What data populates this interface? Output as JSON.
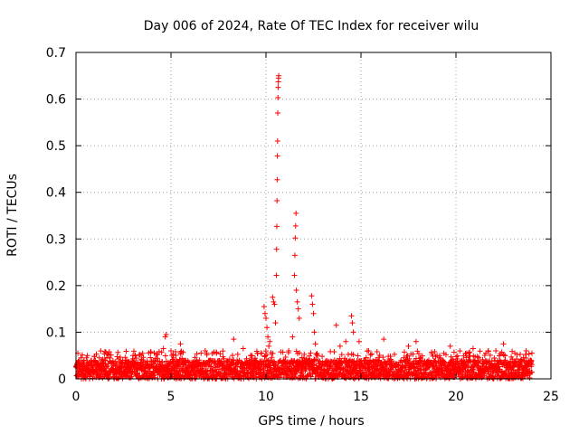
{
  "chart_data": {
    "type": "scatter",
    "title": "Day 006 of 2024, Rate Of TEC Index for receiver wilu",
    "xlabel": "GPS time / hours",
    "ylabel": "ROTI / TECUs",
    "xlim": [
      0,
      25
    ],
    "ylim": [
      0,
      0.7
    ],
    "xticks": [
      0,
      5,
      10,
      15,
      20,
      25
    ],
    "yticks": [
      0,
      0.1,
      0.2,
      0.3,
      0.4,
      0.5,
      0.6,
      0.7
    ],
    "xtick_labels": [
      "0",
      "5",
      "10",
      "15",
      "20",
      "25"
    ],
    "ytick_labels": [
      "0",
      "0.1",
      "0.2",
      "0.3",
      "0.4",
      "0.5",
      "0.6",
      "0.7"
    ],
    "grid": true,
    "marker": "+",
    "marker_color": "#ff0000",
    "x_data_range": [
      0,
      24
    ],
    "baseline": {
      "typical_max": 0.04,
      "occasional_max": 0.06
    },
    "points": [
      [
        0.1,
        0.055
      ],
      [
        0.6,
        0.05
      ],
      [
        1.7,
        0.052
      ],
      [
        3.0,
        0.05
      ],
      [
        4.6,
        0.065
      ],
      [
        4.7,
        0.09
      ],
      [
        4.75,
        0.095
      ],
      [
        5.0,
        0.06
      ],
      [
        5.5,
        0.075
      ],
      [
        6.8,
        0.06
      ],
      [
        7.4,
        0.055
      ],
      [
        8.3,
        0.085
      ],
      [
        8.8,
        0.065
      ],
      [
        9.2,
        0.05
      ],
      [
        9.9,
        0.155
      ],
      [
        9.95,
        0.14
      ],
      [
        10.0,
        0.13
      ],
      [
        10.05,
        0.11
      ],
      [
        10.1,
        0.09
      ],
      [
        10.15,
        0.07
      ],
      [
        10.2,
        0.08
      ],
      [
        10.35,
        0.175
      ],
      [
        10.4,
        0.165
      ],
      [
        10.45,
        0.16
      ],
      [
        10.5,
        0.12
      ],
      [
        10.55,
        0.222
      ],
      [
        10.56,
        0.278
      ],
      [
        10.57,
        0.327
      ],
      [
        10.58,
        0.382
      ],
      [
        10.59,
        0.427
      ],
      [
        10.6,
        0.478
      ],
      [
        10.61,
        0.51
      ],
      [
        10.62,
        0.57
      ],
      [
        10.63,
        0.603
      ],
      [
        10.64,
        0.625
      ],
      [
        10.65,
        0.637
      ],
      [
        10.66,
        0.645
      ],
      [
        10.67,
        0.65
      ],
      [
        11.2,
        0.06
      ],
      [
        11.4,
        0.09
      ],
      [
        11.5,
        0.222
      ],
      [
        11.52,
        0.265
      ],
      [
        11.54,
        0.302
      ],
      [
        11.56,
        0.328
      ],
      [
        11.58,
        0.355
      ],
      [
        11.6,
        0.19
      ],
      [
        11.65,
        0.165
      ],
      [
        11.7,
        0.15
      ],
      [
        11.75,
        0.13
      ],
      [
        12.4,
        0.178
      ],
      [
        12.45,
        0.16
      ],
      [
        12.5,
        0.14
      ],
      [
        12.55,
        0.1
      ],
      [
        12.6,
        0.075
      ],
      [
        13.7,
        0.115
      ],
      [
        13.9,
        0.07
      ],
      [
        14.2,
        0.08
      ],
      [
        14.5,
        0.135
      ],
      [
        14.55,
        0.12
      ],
      [
        14.6,
        0.1
      ],
      [
        14.9,
        0.08
      ],
      [
        15.4,
        0.06
      ],
      [
        16.2,
        0.085
      ],
      [
        17.5,
        0.07
      ],
      [
        17.9,
        0.08
      ],
      [
        19.7,
        0.07
      ],
      [
        20.9,
        0.065
      ],
      [
        22.1,
        0.06
      ],
      [
        22.5,
        0.075
      ],
      [
        23.1,
        0.055
      ],
      [
        23.7,
        0.06
      ],
      [
        24.0,
        0.055
      ]
    ]
  }
}
